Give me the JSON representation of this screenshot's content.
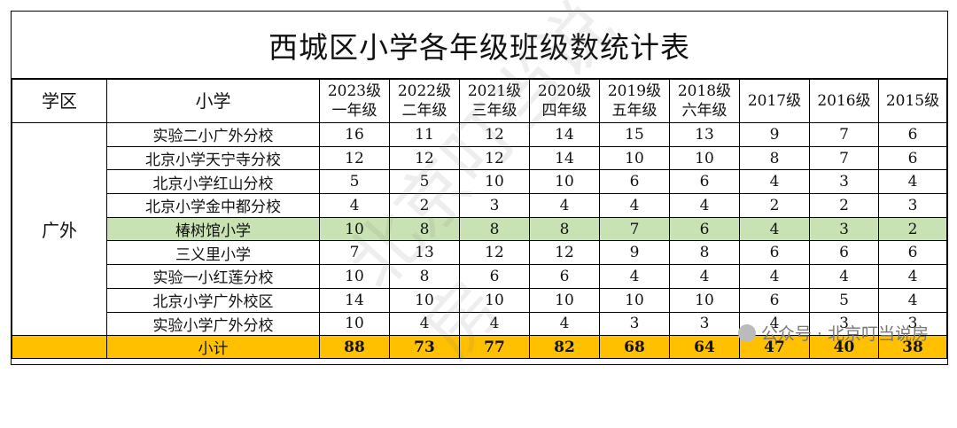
{
  "title": "西城区小学各年级班级数统计表",
  "headers": {
    "district": "学区",
    "school": "小学",
    "grades": [
      {
        "line1": "2023级",
        "line2": "一年级"
      },
      {
        "line1": "2022级",
        "line2": "二年级"
      },
      {
        "line1": "2021级",
        "line2": "三年级"
      },
      {
        "line1": "2020级",
        "line2": "四年级"
      },
      {
        "line1": "2019级",
        "line2": "五年级"
      },
      {
        "line1": "2018级",
        "line2": "六年级"
      },
      {
        "line1": "2017级",
        "line2": ""
      },
      {
        "line1": "2016级",
        "line2": ""
      },
      {
        "line1": "2015级",
        "line2": ""
      }
    ]
  },
  "district": "广外",
  "rows": [
    {
      "school": "实验二小广外分校",
      "values": [
        "16",
        "11",
        "12",
        "14",
        "15",
        "13",
        "9",
        "7",
        "6"
      ]
    },
    {
      "school": "北京小学天宁寺分校",
      "values": [
        "12",
        "12",
        "12",
        "14",
        "10",
        "10",
        "8",
        "7",
        "6"
      ]
    },
    {
      "school": "北京小学红山分校",
      "values": [
        "5",
        "5",
        "10",
        "10",
        "6",
        "6",
        "4",
        "3",
        "4"
      ]
    },
    {
      "school": "北京小学金中都分校",
      "values": [
        "4",
        "2",
        "3",
        "4",
        "4",
        "4",
        "2",
        "2",
        "3"
      ]
    },
    {
      "school": "椿树馆小学",
      "values": [
        "10",
        "8",
        "8",
        "8",
        "7",
        "6",
        "4",
        "3",
        "2"
      ]
    },
    {
      "school": "三义里小学",
      "values": [
        "7",
        "13",
        "12",
        "12",
        "9",
        "8",
        "6",
        "6",
        "6"
      ]
    },
    {
      "school": "实验一小红莲分校",
      "values": [
        "10",
        "8",
        "6",
        "6",
        "4",
        "4",
        "4",
        "4",
        "4"
      ]
    },
    {
      "school": "北京小学广外校区",
      "values": [
        "14",
        "10",
        "10",
        "10",
        "10",
        "10",
        "6",
        "5",
        "4"
      ]
    },
    {
      "school": "实验小学广外分校",
      "values": [
        "10",
        "4",
        "4",
        "4",
        "3",
        "3",
        "4",
        "3",
        "3"
      ]
    }
  ],
  "subtotal": {
    "label": "小计",
    "values": [
      "88",
      "73",
      "77",
      "82",
      "68",
      "64",
      "47",
      "40",
      "38"
    ]
  },
  "watermark": "北京叮当说房",
  "credit": "公众号 · 北京叮当说房",
  "colors": {
    "highlight": "#c9e2b3",
    "subtotal": "#ffc000"
  }
}
